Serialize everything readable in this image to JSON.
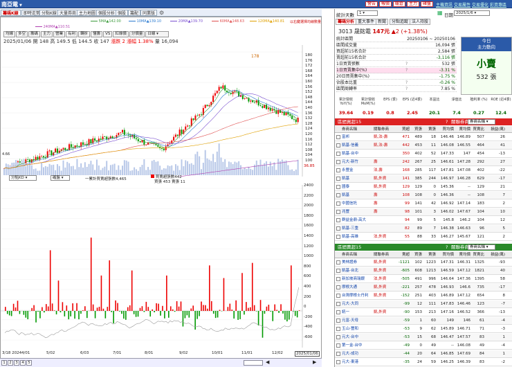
{
  "app": {
    "stock_name": "南亞電",
    "top_buttons": [
      "警告",
      "報價",
      "暖倉",
      "主力",
      "確盤"
    ],
    "top_links": [
      "主機資訊",
      "交易屬性",
      "交易優化",
      "彩資專區"
    ]
  },
  "tabs": [
    "籌碼K線",
    "即時走勢",
    "分點K線",
    "大量券商",
    "主力地圖",
    "個股分析",
    "個股",
    "籌配",
    "同業版"
  ],
  "legend": {
    "row1": [
      {
        "t": "5MA▲142.00",
        "c": "#3a9a3a"
      },
      {
        "t": "10MA▲139.10",
        "c": "#2a7ad0"
      },
      {
        "t": "20MA▲139.70",
        "c": "#7a4fd0"
      },
      {
        "t": "60MA▲148.63",
        "c": "#e05050"
      },
      {
        "t": "120MA▲140.81",
        "c": "#e0a000"
      }
    ],
    "row2": [
      {
        "t": "240MA▲110.51",
        "c": "#b040b0"
      }
    ],
    "hint": "以右鍵選擇均線數量"
  },
  "toolbar": [
    "均線",
    "多空",
    "籌碼",
    "主力",
    "營業",
    "有利",
    "轉折",
    "懂籌",
    "VS",
    "紅綠價",
    "分價量"
  ],
  "toolbar_select": "日線",
  "quote": {
    "date": "2025/01/06",
    "open": "開 148",
    "high": "高 149.5",
    "low": "低 144.5",
    "close": "收 147",
    "change": "漲跌 2",
    "pct": "漲幅 1.38%",
    "vol": "量 16,094"
  },
  "price_axis": [
    "180",
    "176",
    "172",
    "168",
    "164",
    "160",
    "156",
    "152",
    "148",
    "144",
    "140",
    "136",
    "132",
    "128",
    "124",
    "120",
    "116",
    "112",
    "108",
    "104",
    "100"
  ],
  "peak_label": "178",
  "left_scale": [
    "4.66",
    "36.85"
  ],
  "vol_axis_label": "36.85",
  "ind": {
    "select": "分點KD",
    "select2": "確盤",
    "line1": "一累計買賣超張數4,465",
    "line2": "買賣超張數442",
    "line3": "買張 453 賣張 11"
  },
  "ind_axis": [
    "2400",
    "2200",
    "2000",
    "1800",
    "1600",
    "1400",
    "1200",
    "1000",
    "800",
    "600",
    "400",
    "200",
    "0",
    "-200",
    "-400",
    "-600"
  ],
  "x_labels": [
    "3/18 2024",
    "4/01",
    "5/02",
    "6/03",
    "7/01",
    "8/01",
    "9/02",
    "10/01",
    "11/01",
    "12/02",
    "2025/01/06"
  ],
  "pages": [
    "1",
    "2",
    "3",
    "4",
    "5"
  ],
  "right": {
    "stat_label": "統計天數",
    "stat_days": "1",
    "date_label": "日期",
    "date": "2025/1/6",
    "rtabs": [
      "籌碼分析",
      "重大事件",
      "新聞",
      "分點追蹤",
      "法人持股"
    ],
    "stock_line": "3013 晟銘電",
    "price": "147元",
    "chg": "▲2 (+1.38%)",
    "summary": [
      {
        "k": "統計區間",
        "v": "20250106 ~ 20250106",
        "m": ""
      },
      {
        "k": "區間成交量",
        "v": "16,094 張",
        "m": ""
      },
      {
        "k": "買超前15名合計",
        "v": "2,584 張",
        "m": ""
      },
      {
        "k": "賣超前15名合計",
        "v": "-3,116 張",
        "m": ""
      },
      {
        "k": "1日買賣張數",
        "v": "532 張",
        "m": "?"
      },
      {
        "k": "1日買賣集中(%)",
        "v": "-3.31 %",
        "m": "?"
      },
      {
        "k": "20日買賣集中(%)",
        "v": "-1.75 %",
        "m": ""
      },
      {
        "k": "佔股本比重",
        "v": "-0.26 %",
        "m": "?"
      },
      {
        "k": "區間周轉率",
        "v": "7.85 %",
        "m": "?"
      }
    ],
    "today_box": {
      "l1": "今日",
      "l2": "主力動向",
      "big": "小賣",
      "amt": "532 張"
    },
    "ratios": {
      "heads": [
        "累計營收 YoY(%)",
        "累計營收 MoM(%)",
        "EPS (季)",
        "EPS (近4季)",
        "本益比",
        "淨值比",
        "殖利率 (%)",
        "ROE (近4季)"
      ],
      "vals": [
        "39.64",
        "0.19",
        "0.8",
        "2.45",
        "20.1",
        "7.4",
        "0.27",
        "12.4"
      ],
      "colors": [
        "#c00",
        "#c00",
        "#c00",
        "#c00",
        "#060",
        "#060",
        "#060",
        "#060"
      ]
    },
    "buy": {
      "title": "區間買超15",
      "sel": "券商名稱",
      "cols": [
        "券商名稱",
        "關聯券商",
        "買超",
        "買張",
        "賣張",
        "買均價",
        "賣均價",
        "買賣比",
        "損益(萬)"
      ],
      "rows": [
        [
          "富邦",
          "凱,法-壽",
          "471",
          "489",
          "18",
          "146.46",
          "146.89",
          "507",
          "26"
        ],
        [
          "凱基-信義",
          "凱,法-壽",
          "442",
          "453",
          "11",
          "146.08",
          "146.55",
          "464",
          "41"
        ],
        [
          "凱基-台中",
          "",
          "350",
          "402",
          "52",
          "147.33",
          "147",
          "454",
          "-13"
        ],
        [
          "元大-新竹",
          "壽",
          "242",
          "267",
          "25",
          "146.61",
          "147.28",
          "292",
          "27"
        ],
        [
          "永豐金",
          "法,壽",
          "168",
          "285",
          "117",
          "147.81",
          "147.08",
          "402",
          "-22"
        ],
        [
          "凱基",
          "凱,外資",
          "141",
          "385",
          "244",
          "146.97",
          "146.28",
          "629",
          "-17"
        ],
        [
          "國泰",
          "凱,外資",
          "129",
          "129",
          "0",
          "145.36",
          "--",
          "129",
          "21"
        ],
        [
          "凱基",
          "壽",
          "108",
          "108",
          "0",
          "146.36",
          "--",
          "108",
          "7"
        ],
        [
          "中國信託",
          "壽",
          "99",
          "141",
          "42",
          "146.92",
          "147.14",
          "183",
          "2"
        ],
        [
          "兆豐",
          "壽",
          "98",
          "101",
          "3",
          "146.02",
          "147.67",
          "104",
          "10"
        ],
        [
          "群益金鼎-高大",
          "",
          "94",
          "99",
          "5",
          "145.8",
          "146.2",
          "104",
          "12"
        ],
        [
          "凱基-三重",
          "",
          "82",
          "89",
          "7",
          "146.38",
          "146.63",
          "96",
          "5"
        ],
        [
          "凱基-高雄",
          "法,外資",
          "55",
          "88",
          "33",
          "146.27",
          "145.67",
          "121",
          "2"
        ]
      ]
    },
    "sell": {
      "title": "區間賣超15",
      "sel": "券商名稱",
      "cols": [
        "券商名稱",
        "關聯券商",
        "賣超",
        "買張",
        "賣張",
        "買均價",
        "賣均價",
        "買賣比",
        "損益(萬)"
      ],
      "rows": [
        [
          "美林證券",
          "凱,外資",
          "-1121",
          "102",
          "1223",
          "147.31",
          "146.31",
          "1325",
          "-93"
        ],
        [
          "凱基-台北",
          "凱,外資",
          "-605",
          "608",
          "1213",
          "146.59",
          "147.12",
          "1821",
          "40"
        ],
        [
          "新加坡商瑞銀",
          "法,外資",
          "-505",
          "491",
          "996",
          "146.64",
          "147.36",
          "1395",
          "58"
        ],
        [
          "摩根大通",
          "凱,外資",
          "-221",
          "257",
          "478",
          "146.93",
          "146.6",
          "735",
          "-17"
        ],
        [
          "台灣摩根士丹利",
          "凱,外資",
          "-152",
          "251",
          "403",
          "146.89",
          "147.12",
          "654",
          "8"
        ],
        [
          "元大-大同",
          "",
          "-99",
          "12",
          "111",
          "147.83",
          "146.46",
          "123",
          "-7"
        ],
        [
          "統一",
          "凱,外資",
          "-90",
          "153",
          "213",
          "147.16",
          "146.52",
          "366",
          "-13"
        ],
        [
          "元富-天母",
          "",
          "-59",
          "1",
          "60",
          "149",
          "146",
          "61",
          "-4"
        ],
        [
          "玉山-豐和",
          "",
          "-53",
          "9",
          "62",
          "145.89",
          "146.71",
          "71",
          "-3"
        ],
        [
          "元大-台中",
          "",
          "-53",
          "15",
          "68",
          "146.47",
          "147.57",
          "83",
          "1"
        ],
        [
          "第一金-台中",
          "",
          "-49",
          "0",
          "49",
          "--",
          "146.08",
          "49",
          "-4"
        ],
        [
          "元大-成功",
          "",
          "-44",
          "20",
          "64",
          "146.85",
          "147.69",
          "84",
          "1"
        ],
        [
          "元大-東港",
          "",
          "-35",
          "24",
          "59",
          "146.25",
          "146.39",
          "83",
          "-2"
        ]
      ]
    }
  }
}
